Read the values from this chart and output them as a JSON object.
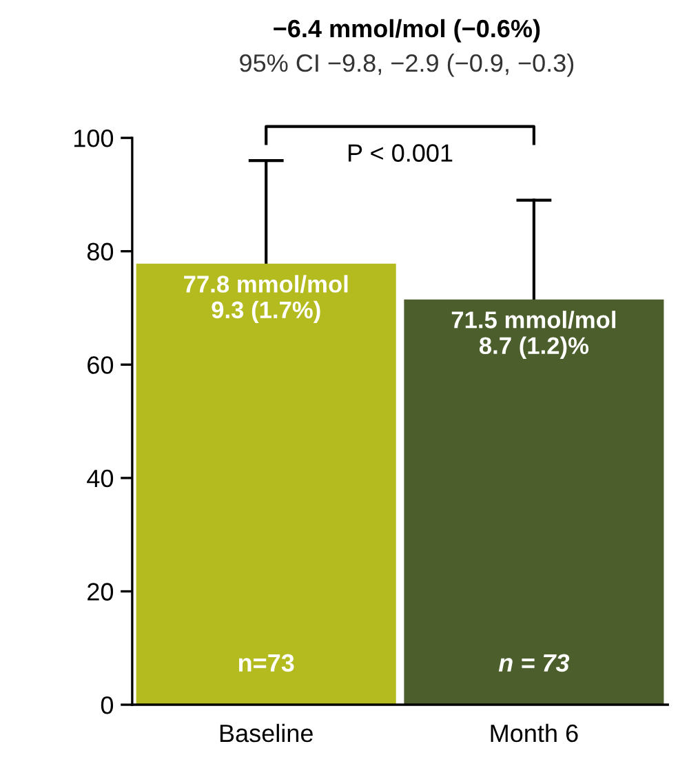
{
  "chart_data": {
    "type": "bar",
    "title": "−6.4 mmol/mol (−0.6%)",
    "subtitle": "95% CI −9.8, −2.9 (−0.9, −0.3)",
    "categories": [
      "Baseline",
      "Month 6"
    ],
    "values": [
      77.8,
      71.5
    ],
    "colors": [
      "#b3bb1f",
      "#4b5e2c"
    ],
    "errors": [
      [
        77.8,
        96
      ],
      [
        71.5,
        89
      ]
    ],
    "value_labels": [
      "77.8 mmol/mol\n9.3 (1.7%)",
      "71.5 mmol/mol\n8.7 (1.2)%"
    ],
    "annotations": [
      "n=73",
      "n = 73",
      "P < 0.001"
    ],
    "ylim": [
      0,
      100
    ],
    "yticks": [
      0,
      20,
      40,
      60,
      80,
      100
    ],
    "grid": false,
    "legend": false
  }
}
